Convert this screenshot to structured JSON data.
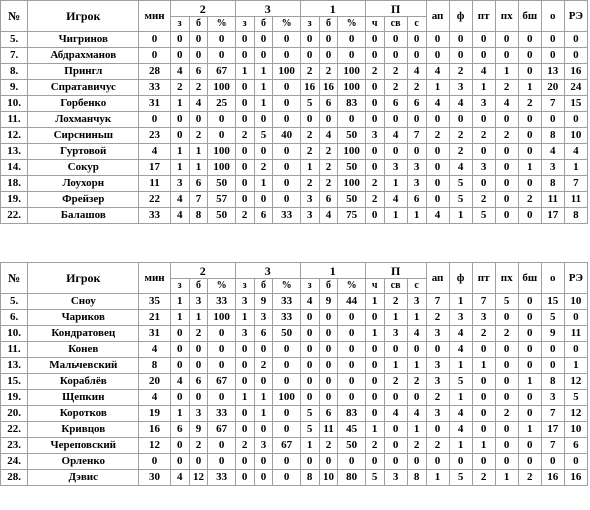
{
  "headers": {
    "num": "№",
    "player": "Игрок",
    "min": "мин",
    "g2": "2",
    "g3": "3",
    "g1": "1",
    "gP": "П",
    "sub_z": "з",
    "sub_b": "б",
    "sub_pct": "%",
    "sub_ch": "ч",
    "sub_sv": "св",
    "sub_s": "с",
    "ap": "ап",
    "f": "ф",
    "pt": "пт",
    "px": "пх",
    "bsh": "бш",
    "o": "о",
    "re": "РЭ"
  },
  "teams": [
    {
      "rows": [
        [
          "5.",
          "Чигринов",
          "0",
          "0",
          "0",
          "0",
          "0",
          "0",
          "0",
          "0",
          "0",
          "0",
          "0",
          "0",
          "0",
          "0",
          "0",
          "0",
          "0",
          "0",
          "0",
          "0"
        ],
        [
          "7.",
          "Абдрахманов",
          "0",
          "0",
          "0",
          "0",
          "0",
          "0",
          "0",
          "0",
          "0",
          "0",
          "0",
          "0",
          "0",
          "0",
          "0",
          "0",
          "0",
          "0",
          "0",
          "0"
        ],
        [
          "8.",
          "Прингл",
          "28",
          "4",
          "6",
          "67",
          "1",
          "1",
          "100",
          "2",
          "2",
          "100",
          "2",
          "2",
          "4",
          "4",
          "2",
          "4",
          "1",
          "0",
          "13",
          "16"
        ],
        [
          "9.",
          "Спратавичус",
          "33",
          "2",
          "2",
          "100",
          "0",
          "1",
          "0",
          "16",
          "16",
          "100",
          "0",
          "2",
          "2",
          "1",
          "3",
          "1",
          "2",
          "1",
          "20",
          "24"
        ],
        [
          "10.",
          "Горбенко",
          "31",
          "1",
          "4",
          "25",
          "0",
          "1",
          "0",
          "5",
          "6",
          "83",
          "0",
          "6",
          "6",
          "4",
          "4",
          "3",
          "4",
          "2",
          "7",
          "15"
        ],
        [
          "11.",
          "Лохманчук",
          "0",
          "0",
          "0",
          "0",
          "0",
          "0",
          "0",
          "0",
          "0",
          "0",
          "0",
          "0",
          "0",
          "0",
          "0",
          "0",
          "0",
          "0",
          "0",
          "0"
        ],
        [
          "12.",
          "Сирсниньш",
          "23",
          "0",
          "2",
          "0",
          "2",
          "5",
          "40",
          "2",
          "4",
          "50",
          "3",
          "4",
          "7",
          "2",
          "2",
          "2",
          "2",
          "0",
          "8",
          "10"
        ],
        [
          "13.",
          "Гуртовой",
          "4",
          "1",
          "1",
          "100",
          "0",
          "0",
          "0",
          "2",
          "2",
          "100",
          "0",
          "0",
          "0",
          "0",
          "2",
          "0",
          "0",
          "0",
          "4",
          "4"
        ],
        [
          "14.",
          "Сокур",
          "17",
          "1",
          "1",
          "100",
          "0",
          "2",
          "0",
          "1",
          "2",
          "50",
          "0",
          "3",
          "3",
          "0",
          "4",
          "3",
          "0",
          "1",
          "3",
          "1"
        ],
        [
          "18.",
          "Лоухорн",
          "11",
          "3",
          "6",
          "50",
          "0",
          "1",
          "0",
          "2",
          "2",
          "100",
          "2",
          "1",
          "3",
          "0",
          "5",
          "0",
          "0",
          "0",
          "8",
          "7"
        ],
        [
          "19.",
          "Фрейзер",
          "22",
          "4",
          "7",
          "57",
          "0",
          "0",
          "0",
          "3",
          "6",
          "50",
          "2",
          "4",
          "6",
          "0",
          "5",
          "2",
          "0",
          "2",
          "11",
          "11"
        ],
        [
          "22.",
          "Балашов",
          "33",
          "4",
          "8",
          "50",
          "2",
          "6",
          "33",
          "3",
          "4",
          "75",
          "0",
          "1",
          "1",
          "4",
          "1",
          "5",
          "0",
          "0",
          "17",
          "8"
        ]
      ]
    },
    {
      "rows": [
        [
          "5.",
          "Сноу",
          "35",
          "1",
          "3",
          "33",
          "3",
          "9",
          "33",
          "4",
          "9",
          "44",
          "1",
          "2",
          "3",
          "7",
          "1",
          "7",
          "5",
          "0",
          "15",
          "10"
        ],
        [
          "6.",
          "Чариков",
          "21",
          "1",
          "1",
          "100",
          "1",
          "3",
          "33",
          "0",
          "0",
          "0",
          "0",
          "1",
          "1",
          "2",
          "3",
          "3",
          "0",
          "0",
          "5",
          "0"
        ],
        [
          "10.",
          "Кондратовец",
          "31",
          "0",
          "2",
          "0",
          "3",
          "6",
          "50",
          "0",
          "0",
          "0",
          "1",
          "3",
          "4",
          "3",
          "4",
          "2",
          "2",
          "0",
          "9",
          "11"
        ],
        [
          "11.",
          "Конев",
          "4",
          "0",
          "0",
          "0",
          "0",
          "0",
          "0",
          "0",
          "0",
          "0",
          "0",
          "0",
          "0",
          "0",
          "4",
          "0",
          "0",
          "0",
          "0",
          "0"
        ],
        [
          "13.",
          "Мальчевский",
          "8",
          "0",
          "0",
          "0",
          "0",
          "2",
          "0",
          "0",
          "0",
          "0",
          "0",
          "1",
          "1",
          "3",
          "1",
          "1",
          "0",
          "0",
          "0",
          "1"
        ],
        [
          "15.",
          "Кораблёв",
          "20",
          "4",
          "6",
          "67",
          "0",
          "0",
          "0",
          "0",
          "0",
          "0",
          "0",
          "2",
          "2",
          "3",
          "5",
          "0",
          "0",
          "1",
          "8",
          "12"
        ],
        [
          "19.",
          "Щепкин",
          "4",
          "0",
          "0",
          "0",
          "1",
          "1",
          "100",
          "0",
          "0",
          "0",
          "0",
          "0",
          "0",
          "2",
          "1",
          "0",
          "0",
          "0",
          "3",
          "5"
        ],
        [
          "20.",
          "Коротков",
          "19",
          "1",
          "3",
          "33",
          "0",
          "1",
          "0",
          "5",
          "6",
          "83",
          "0",
          "4",
          "4",
          "3",
          "4",
          "0",
          "2",
          "0",
          "7",
          "12"
        ],
        [
          "22.",
          "Кривцов",
          "16",
          "6",
          "9",
          "67",
          "0",
          "0",
          "0",
          "5",
          "11",
          "45",
          "1",
          "0",
          "1",
          "0",
          "4",
          "0",
          "0",
          "1",
          "17",
          "10"
        ],
        [
          "23.",
          "Череповский",
          "12",
          "0",
          "2",
          "0",
          "2",
          "3",
          "67",
          "1",
          "2",
          "50",
          "2",
          "0",
          "2",
          "2",
          "1",
          "1",
          "0",
          "0",
          "7",
          "6"
        ],
        [
          "24.",
          "Орленко",
          "0",
          "0",
          "0",
          "0",
          "0",
          "0",
          "0",
          "0",
          "0",
          "0",
          "0",
          "0",
          "0",
          "0",
          "0",
          "0",
          "0",
          "0",
          "0",
          "0"
        ],
        [
          "28.",
          "Дэвис",
          "30",
          "4",
          "12",
          "33",
          "0",
          "0",
          "0",
          "8",
          "10",
          "80",
          "5",
          "3",
          "8",
          "1",
          "5",
          "2",
          "1",
          "2",
          "16",
          "16"
        ]
      ]
    }
  ]
}
